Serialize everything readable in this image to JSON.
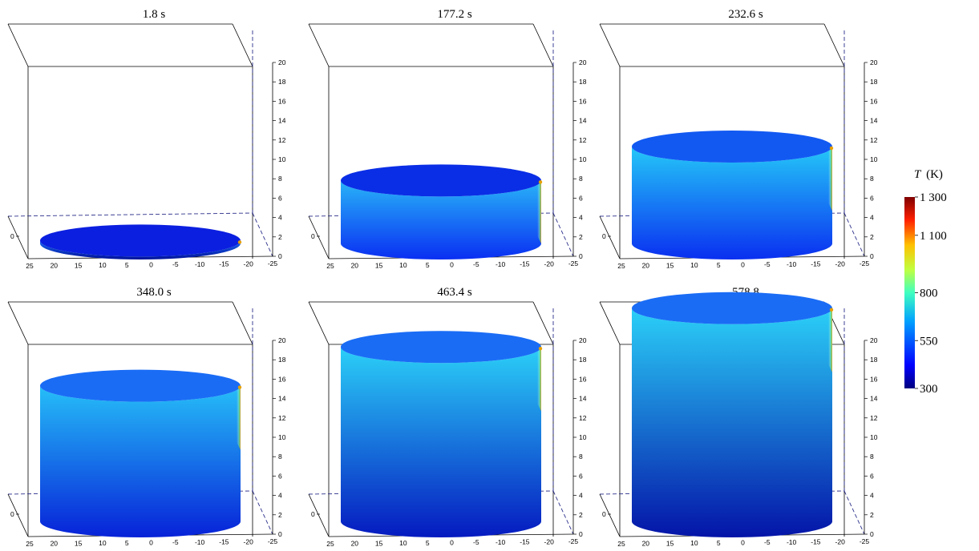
{
  "figure": {
    "legend_title_symbol": "T",
    "legend_title_unit": "(K)"
  },
  "chart_data": {
    "type": "surface-3d",
    "colorbar": {
      "label": "T (K)",
      "min": 300,
      "max": 1300,
      "ticks": [
        "1 300",
        "1 100",
        "800",
        "550",
        "300"
      ],
      "tick_values": [
        1300,
        1100,
        800,
        550,
        300
      ],
      "colormap": "jet"
    },
    "axes": {
      "x_ticks": [
        "25",
        "20",
        "15",
        "10",
        "5",
        "0",
        "-5",
        "-10",
        "-15",
        "-20",
        "-25"
      ],
      "x_values": [
        25,
        20,
        15,
        10,
        5,
        0,
        -5,
        -10,
        -15,
        -20,
        -25
      ],
      "z_ticks": [
        "0",
        "2",
        "4",
        "6",
        "8",
        "10",
        "12",
        "14",
        "16",
        "18",
        "20"
      ],
      "z_values": [
        0,
        2,
        4,
        6,
        8,
        10,
        12,
        14,
        16,
        18,
        20
      ],
      "y_tick": "0",
      "zlim": [
        0,
        20
      ],
      "xlim": [
        -25,
        25
      ]
    },
    "panels": [
      {
        "title": "1.8 s",
        "height": 0.3,
        "top_color": "#0b1fe0",
        "side_top": "#1a6cf5",
        "side_bottom": "#00109a"
      },
      {
        "title": "177.2 s",
        "height": 6.5,
        "top_color": "#0a2ee6",
        "side_top": "#28b4f8",
        "side_bottom": "#0a2ff2"
      },
      {
        "title": "232.6 s",
        "height": 10.0,
        "top_color": "#1259f2",
        "side_top": "#24c8f8",
        "side_bottom": "#0a2ff0"
      },
      {
        "title": "348.0 s",
        "height": 14.0,
        "top_color": "#1a6cf5",
        "side_top": "#26bff8",
        "side_bottom": "#0722d8"
      },
      {
        "title": "463.4 s",
        "height": 18.0,
        "top_color": "#1a6cf5",
        "side_top": "#2bd0f8",
        "side_bottom": "#051ac0"
      },
      {
        "title": "578.8",
        "height": 22.0,
        "top_color": "#1a6cf5",
        "side_top": "#2bd0f8",
        "side_bottom": "#0414a8"
      }
    ]
  }
}
